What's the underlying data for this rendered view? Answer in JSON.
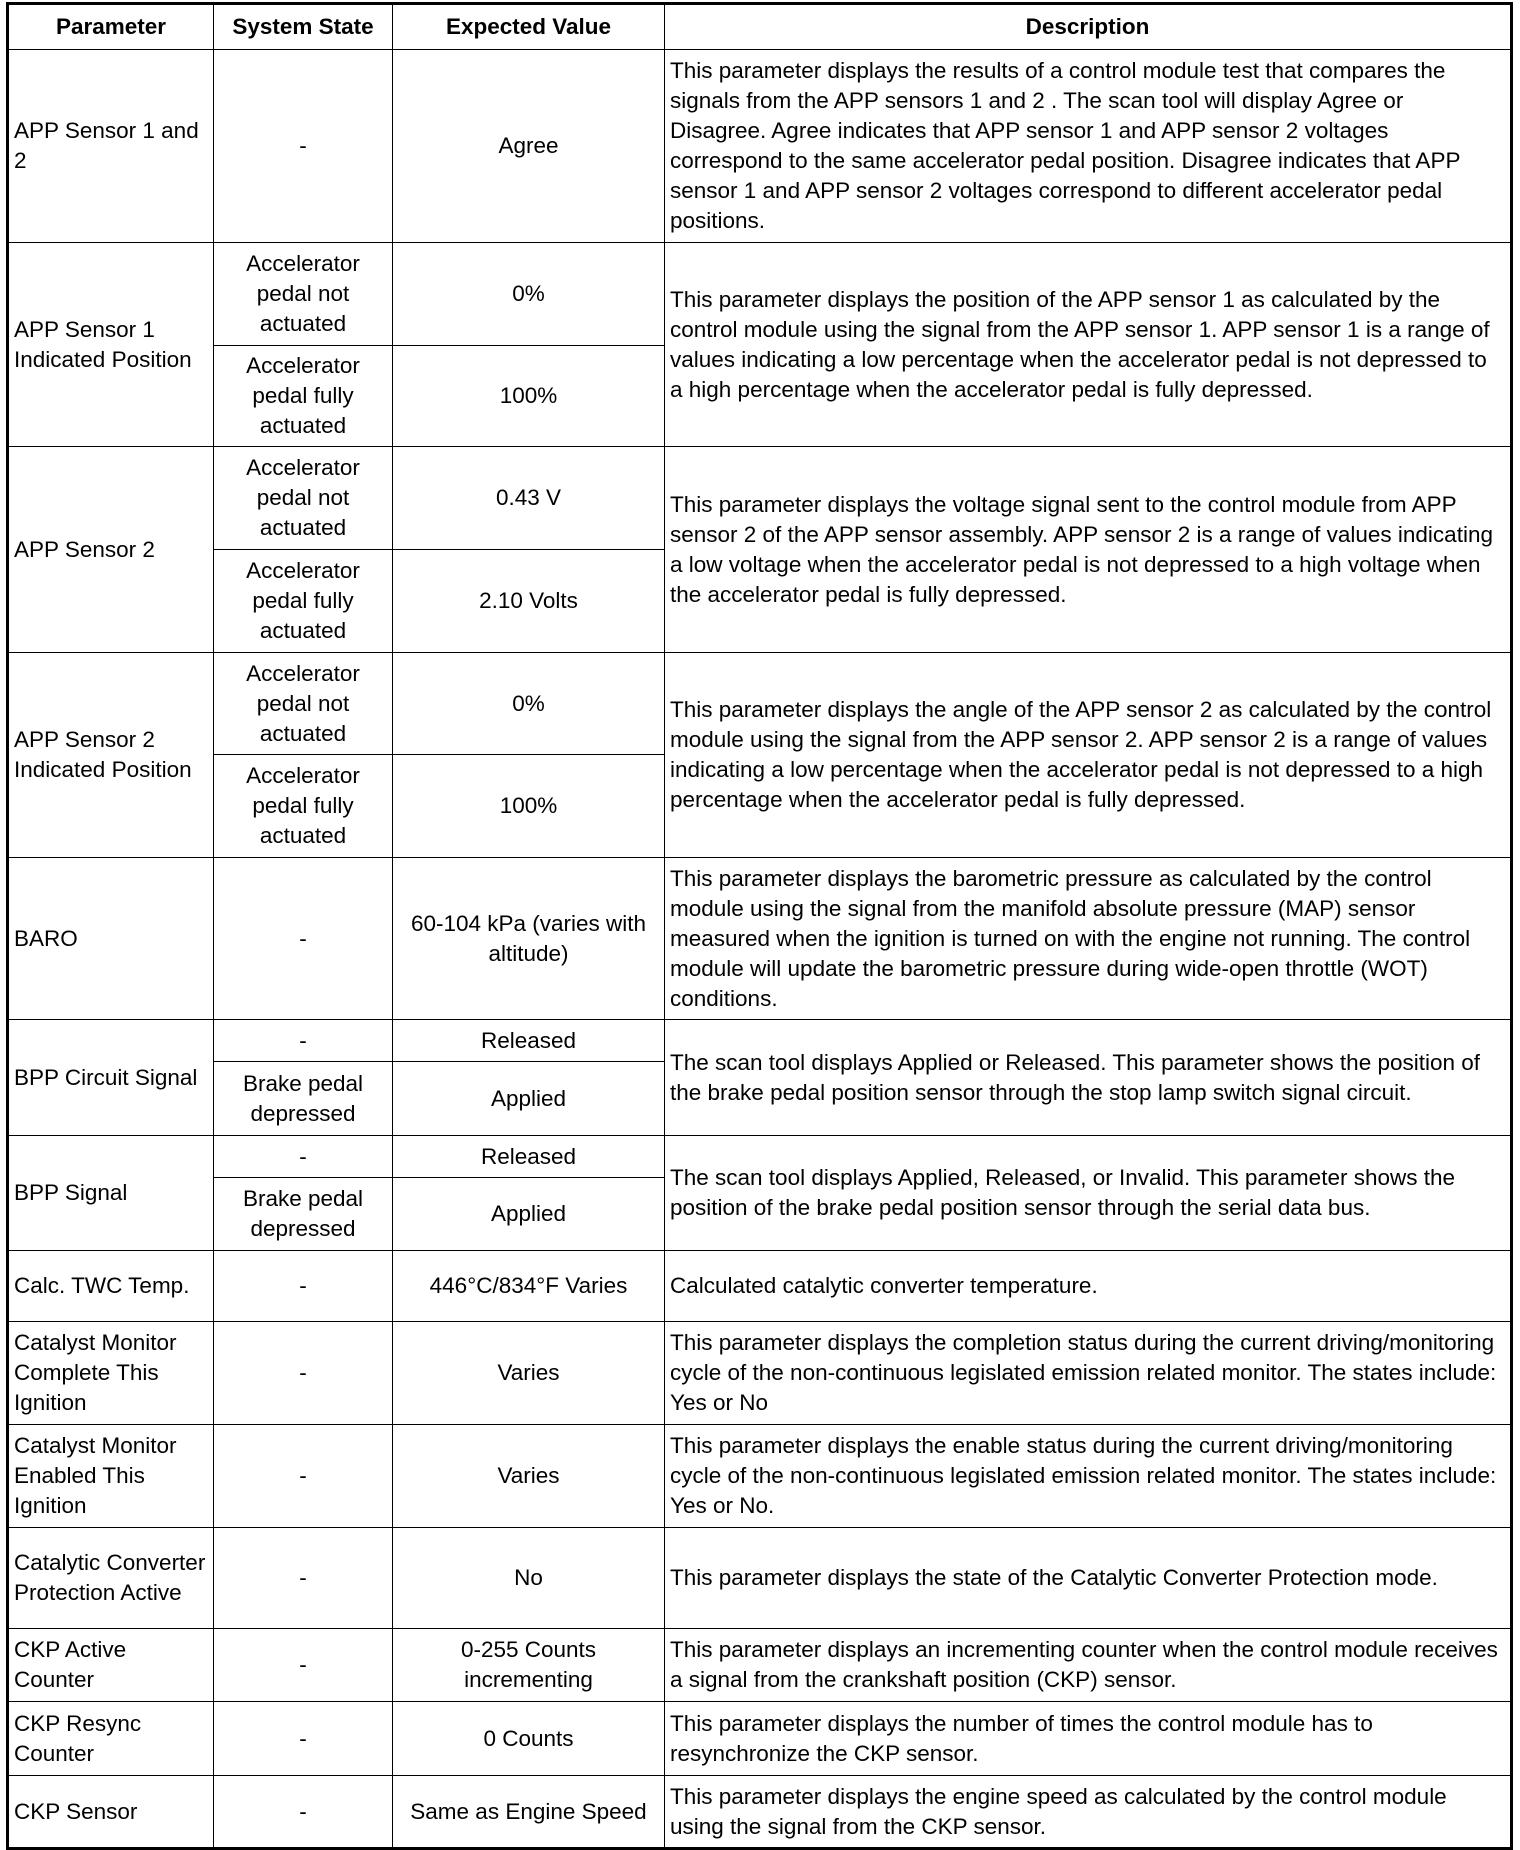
{
  "headers": [
    "Parameter",
    "System State",
    "Expected Value",
    "Description"
  ],
  "rows": [
    {
      "parameter": "APP Sensor 1 and 2",
      "states": [
        {
          "state": "-",
          "value": "Agree"
        }
      ],
      "description": "This parameter displays the results of a control module test that compares the signals from the APP sensors 1 and 2 . The scan tool will display Agree or Disagree. Agree indicates that APP sensor 1 and APP sensor 2 voltages correspond to the same accelerator pedal position. Disagree indicates that APP sensor 1 and APP sensor 2 voltages correspond to different accelerator pedal positions."
    },
    {
      "parameter": "APP Sensor 1 Indicated Position",
      "states": [
        {
          "state": "Accelerator pedal not actuated",
          "value": "0%"
        },
        {
          "state": "Accelerator pedal fully actuated",
          "value": "100%"
        }
      ],
      "description": "This parameter displays the position of the APP sensor 1 as calculated by the control module using the signal from the APP sensor 1. APP sensor 1 is a range of values indicating a low percentage when the accelerator pedal is not depressed to a high percentage when the accelerator pedal is fully depressed."
    },
    {
      "parameter": "APP Sensor 2",
      "states": [
        {
          "state": "Accelerator pedal not actuated",
          "value": "0.43 V"
        },
        {
          "state": "Accelerator pedal fully actuated",
          "value": "2.10 Volts"
        }
      ],
      "description": "This parameter displays the voltage signal sent to the control module from APP sensor 2 of the APP sensor assembly. APP sensor 2 is a range of values indicating a low voltage when the accelerator pedal is not depressed to a high voltage when the accelerator pedal is fully depressed."
    },
    {
      "parameter": "APP Sensor 2 Indicated Position",
      "states": [
        {
          "state": "Accelerator pedal not actuated",
          "value": "0%"
        },
        {
          "state": "Accelerator pedal fully actuated",
          "value": "100%"
        }
      ],
      "description": "This parameter displays the angle of the APP sensor 2 as calculated by the control module using the signal from the APP sensor 2. APP sensor 2 is a range of values indicating a low percentage when the accelerator pedal is not depressed to a high percentage when the accelerator pedal is fully depressed."
    },
    {
      "parameter": "BARO",
      "states": [
        {
          "state": "-",
          "value": "60-104 kPa (varies with altitude)"
        }
      ],
      "description": "This parameter displays the barometric pressure as calculated by the control module using the signal from the manifold absolute pressure (MAP) sensor measured when the ignition is turned on with the engine not running. The control module will update the barometric pressure during wide-open throttle (WOT) conditions."
    },
    {
      "parameter": "BPP Circuit Signal",
      "states": [
        {
          "state": "-",
          "value": "Released"
        },
        {
          "state": "Brake pedal depressed",
          "value": "Applied"
        }
      ],
      "description": "The scan tool displays Applied or Released. This parameter shows the position of the brake pedal position sensor through the stop lamp switch signal circuit."
    },
    {
      "parameter": "BPP Signal",
      "states": [
        {
          "state": "-",
          "value": "Released"
        },
        {
          "state": "Brake pedal depressed",
          "value": "Applied"
        }
      ],
      "description": "The scan tool displays Applied, Released, or Invalid. This parameter shows the position of the brake pedal position sensor through the serial data bus."
    },
    {
      "parameter": "Calc. TWC Temp.",
      "states": [
        {
          "state": "-",
          "value": "446°C/834°F Varies"
        }
      ],
      "description": "Calculated catalytic converter temperature."
    },
    {
      "parameter": "Catalyst Monitor Complete This Ignition",
      "states": [
        {
          "state": "-",
          "value": "Varies"
        }
      ],
      "description": "This parameter displays the completion status during the current driving/monitoring cycle of the non-continuous legislated emission related monitor. The states include: Yes or No"
    },
    {
      "parameter": "Catalyst Monitor Enabled This Ignition",
      "states": [
        {
          "state": "-",
          "value": "Varies"
        }
      ],
      "description": "This parameter displays the enable status during the current driving/monitoring cycle of the non-continuous legislated emission related monitor. The states include: Yes or No."
    },
    {
      "parameter": "Catalytic Converter Protection Active",
      "states": [
        {
          "state": "-",
          "value": "No"
        }
      ],
      "description": "This parameter displays the state of the Catalytic Converter Protection mode."
    },
    {
      "parameter": "CKP Active Counter",
      "states": [
        {
          "state": "-",
          "value": "0-255 Counts incrementing"
        }
      ],
      "description": "This parameter displays an incrementing counter when the control module receives a signal from the crankshaft position (CKP) sensor."
    },
    {
      "parameter": "CKP Resync Counter",
      "states": [
        {
          "state": "-",
          "value": "0 Counts"
        }
      ],
      "description": "This parameter displays the number of times the control module has to resynchronize the CKP sensor."
    },
    {
      "parameter": "CKP Sensor",
      "states": [
        {
          "state": "-",
          "value": "Same as Engine Speed"
        }
      ],
      "description": "This parameter displays the engine speed as calculated by the control module using the signal from the CKP sensor."
    }
  ]
}
